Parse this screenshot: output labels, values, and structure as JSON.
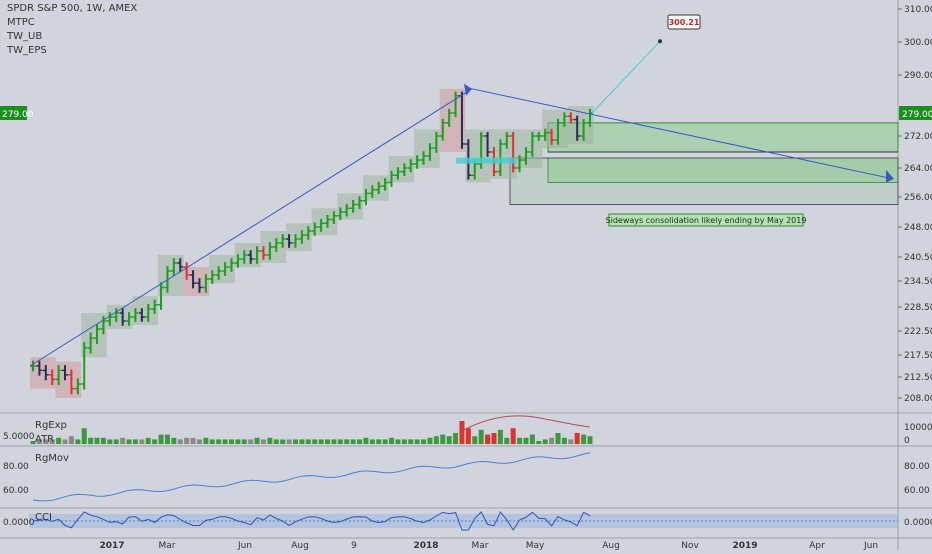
{
  "chart_data": {
    "type": "ohlc",
    "title": "SPDR S&P 500, 1W, AMEX",
    "indicators": [
      "MTPC",
      "TW_UB",
      "TW_EPS"
    ],
    "price_axis": {
      "ticks": [
        "310.00",
        "300.00",
        "290.00",
        "272.00",
        "264.00",
        "256.00",
        "248.00",
        "240.50",
        "234.50",
        "228.50",
        "222.50",
        "217.50",
        "212.50",
        "208.00"
      ],
      "current_label": "279.00",
      "current_value": 279.0,
      "ylim": [
        204,
        312
      ]
    },
    "time_axis": {
      "ticks": [
        "2017",
        "Mar",
        "Jun",
        "Aug",
        "9",
        "2018",
        "Mar",
        "May",
        "Aug",
        "Nov",
        "2019",
        "Apr",
        "Jun"
      ]
    },
    "series": {
      "weekly_close": [
        215,
        214,
        213,
        212,
        214,
        213,
        210,
        211,
        219,
        221,
        223,
        225,
        226,
        227,
        225,
        226,
        227,
        226,
        228,
        229,
        233,
        237,
        239,
        238,
        236,
        234,
        233,
        235,
        236,
        237,
        238,
        239,
        240,
        241,
        240,
        242,
        241,
        243,
        244,
        245,
        244,
        245,
        246,
        247,
        248,
        249,
        250,
        251,
        252,
        253,
        254,
        255,
        257,
        258,
        259,
        260,
        262,
        263,
        264,
        265,
        266,
        267,
        269,
        272,
        276,
        279,
        284,
        270,
        262,
        265,
        272,
        268,
        263,
        270,
        272,
        264,
        266,
        268,
        272,
        272,
        273,
        271,
        276,
        278,
        277,
        272,
        276,
        279
      ]
    },
    "annotations": {
      "target_label": "300.21",
      "target_value": 300.21,
      "note": "Sideways consolidation likely ending by May 2019"
    },
    "panes": [
      {
        "name": "RgExp",
        "secondary": "ATR",
        "left_tick": "5.0000",
        "right_tick": "100000"
      },
      {
        "name": "RgMov",
        "ticks": [
          "80.00",
          "60.00"
        ]
      },
      {
        "name": "CCI",
        "ticks": [
          "0.0000"
        ]
      }
    ]
  }
}
